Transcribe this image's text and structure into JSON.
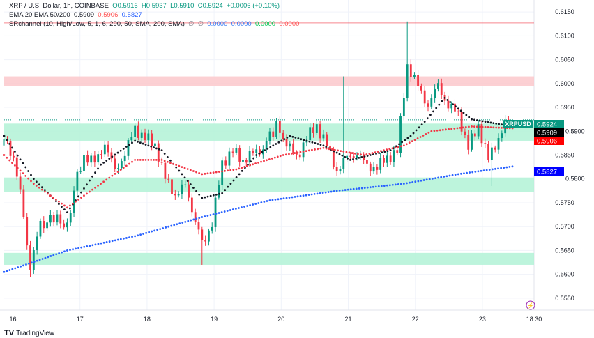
{
  "legend": {
    "line1": {
      "symbol": "XRP / U.S. Dollar, 1h, COINBASE",
      "o": "O0.5916",
      "h": "H0.5937",
      "l": "L0.5910",
      "c": "C0.5924",
      "chg": "+0.0006 (+0.10%)"
    },
    "line2": {
      "name": "EMA 20 EMA 50/200",
      "v1": "0.5909",
      "v2": "0.5906",
      "v3": "0.5827"
    },
    "line3": {
      "name": "SRchannel (10, High/Low, 5, 1, 6, 290, 50, SMA, 200, SMA)",
      "e1": "∅",
      "e2": "∅",
      "v1": "0.0000",
      "v2": "0.0000",
      "v3": "0.0000",
      "v4": "0.0000"
    }
  },
  "colors": {
    "up": "#089981",
    "down": "#f23645",
    "ema20": "#131722",
    "ema50": "#f23645",
    "ema200": "#2962ff",
    "zone_support": "#b2f2d6",
    "zone_resist": "#fcc8cb"
  },
  "logo": "TradingView",
  "chart_data": {
    "type": "candlestick",
    "symbol_label": "XRPUSD",
    "ylim": [
      0.5525,
      0.6175
    ],
    "xlim": [
      15.87,
      23.77
    ],
    "y_ticks": [
      "0.6150",
      "0.6100",
      "0.6050",
      "0.6000",
      "0.5950",
      "0.5900",
      "0.5850",
      "0.5800",
      "0.5750",
      "0.5700",
      "0.5650",
      "0.5600",
      "0.5550"
    ],
    "x_ticks": [
      {
        "x": 16,
        "label": "16"
      },
      {
        "x": 17,
        "label": "17"
      },
      {
        "x": 18,
        "label": "18"
      },
      {
        "x": 19,
        "label": "19"
      },
      {
        "x": 20,
        "label": "20"
      },
      {
        "x": 21,
        "label": "21"
      },
      {
        "x": 22,
        "label": "22"
      },
      {
        "x": 23,
        "label": "23"
      },
      {
        "x": 23.77,
        "label": "18:30"
      }
    ],
    "price_labels": [
      {
        "label": "0.5924",
        "color": "#089981"
      },
      {
        "label": "0.5909",
        "color": "#000000"
      },
      {
        "label": "0.5906",
        "color": "#ff0000"
      },
      {
        "label": "0.5827",
        "color": "#0000ff"
      }
    ],
    "last_price": 0.5924,
    "zones": [
      {
        "from": 0.5995,
        "to": 0.6015,
        "type": "resistance"
      },
      {
        "from": 0.588,
        "to": 0.5916,
        "type": "support"
      },
      {
        "from": 0.5773,
        "to": 0.5803,
        "type": "support"
      },
      {
        "from": 0.562,
        "to": 0.5645,
        "type": "support"
      }
    ],
    "lines": [
      {
        "price": 0.6127,
        "color": "#f23645"
      }
    ],
    "closes": [
      [
        15.87,
        0.588
      ],
      [
        16.01,
        0.585
      ],
      [
        16.11,
        0.577
      ],
      [
        16.26,
        0.562
      ],
      [
        16.41,
        0.57
      ],
      [
        16.61,
        0.572
      ],
      [
        16.81,
        0.57
      ],
      [
        16.91,
        0.578
      ],
      [
        17.06,
        0.585
      ],
      [
        17.22,
        0.583
      ],
      [
        17.37,
        0.588
      ],
      [
        17.52,
        0.581
      ],
      [
        17.67,
        0.586
      ],
      [
        17.82,
        0.59
      ],
      [
        17.97,
        0.589
      ],
      [
        18.12,
        0.587
      ],
      [
        18.27,
        0.58
      ],
      [
        18.42,
        0.577
      ],
      [
        18.57,
        0.578
      ],
      [
        18.72,
        0.572
      ],
      [
        18.82,
        0.566
      ],
      [
        18.97,
        0.571
      ],
      [
        19.12,
        0.583
      ],
      [
        19.28,
        0.586
      ],
      [
        19.43,
        0.584
      ],
      [
        19.58,
        0.585
      ],
      [
        19.73,
        0.587
      ],
      [
        19.93,
        0.591
      ],
      [
        20.08,
        0.588
      ],
      [
        20.23,
        0.584
      ],
      [
        20.38,
        0.589
      ],
      [
        20.53,
        0.591
      ],
      [
        20.68,
        0.587
      ],
      [
        20.83,
        0.582
      ],
      [
        20.98,
        0.584
      ],
      [
        21.13,
        0.586
      ],
      [
        21.28,
        0.582
      ],
      [
        21.43,
        0.583
      ],
      [
        21.58,
        0.584
      ],
      [
        21.73,
        0.586
      ],
      [
        21.88,
        0.604
      ],
      [
        22.04,
        0.599
      ],
      [
        22.19,
        0.596
      ],
      [
        22.34,
        0.599
      ],
      [
        22.49,
        0.596
      ],
      [
        22.64,
        0.593
      ],
      [
        22.79,
        0.587
      ],
      [
        22.94,
        0.591
      ],
      [
        23.09,
        0.584
      ],
      [
        23.24,
        0.589
      ],
      [
        23.39,
        0.5924
      ]
    ],
    "extremes": [
      [
        16.26,
        0.5595,
        "low"
      ],
      [
        18.82,
        0.562,
        "low"
      ],
      [
        20.93,
        0.6015,
        "high"
      ],
      [
        21.88,
        0.613,
        "high"
      ],
      [
        23.15,
        0.5785,
        "low"
      ]
    ],
    "series": [
      {
        "name": "EMA 20",
        "color": "#131722",
        "points": [
          [
            15.87,
            0.589
          ],
          [
            16.31,
            0.58
          ],
          [
            16.81,
            0.573
          ],
          [
            17.31,
            0.583
          ],
          [
            17.82,
            0.588
          ],
          [
            18.22,
            0.586
          ],
          [
            18.82,
            0.576
          ],
          [
            19.12,
            0.577
          ],
          [
            19.63,
            0.585
          ],
          [
            20.13,
            0.589
          ],
          [
            20.63,
            0.587
          ],
          [
            21.03,
            0.584
          ],
          [
            21.63,
            0.586
          ],
          [
            21.93,
            0.589
          ],
          [
            22.14,
            0.592
          ],
          [
            22.44,
            0.597
          ],
          [
            22.84,
            0.5925
          ],
          [
            23.49,
            0.5909
          ]
        ]
      },
      {
        "name": "EMA 50",
        "color": "#f23645",
        "points": [
          [
            15.87,
            0.585
          ],
          [
            16.31,
            0.579
          ],
          [
            16.81,
            0.574
          ],
          [
            17.31,
            0.579
          ],
          [
            17.82,
            0.584
          ],
          [
            18.22,
            0.584
          ],
          [
            18.82,
            0.581
          ],
          [
            19.33,
            0.582
          ],
          [
            20.03,
            0.585
          ],
          [
            20.63,
            0.5865
          ],
          [
            21.23,
            0.585
          ],
          [
            21.83,
            0.587
          ],
          [
            22.24,
            0.59
          ],
          [
            22.84,
            0.591
          ],
          [
            23.49,
            0.5906
          ]
        ]
      },
      {
        "name": "EMA 200",
        "color": "#2962ff",
        "points": [
          [
            15.87,
            0.5605
          ],
          [
            16.81,
            0.565
          ],
          [
            17.82,
            0.568
          ],
          [
            18.82,
            0.572
          ],
          [
            19.83,
            0.5755
          ],
          [
            20.83,
            0.5775
          ],
          [
            21.83,
            0.579
          ],
          [
            22.64,
            0.581
          ],
          [
            23.49,
            0.5827
          ]
        ]
      }
    ]
  }
}
